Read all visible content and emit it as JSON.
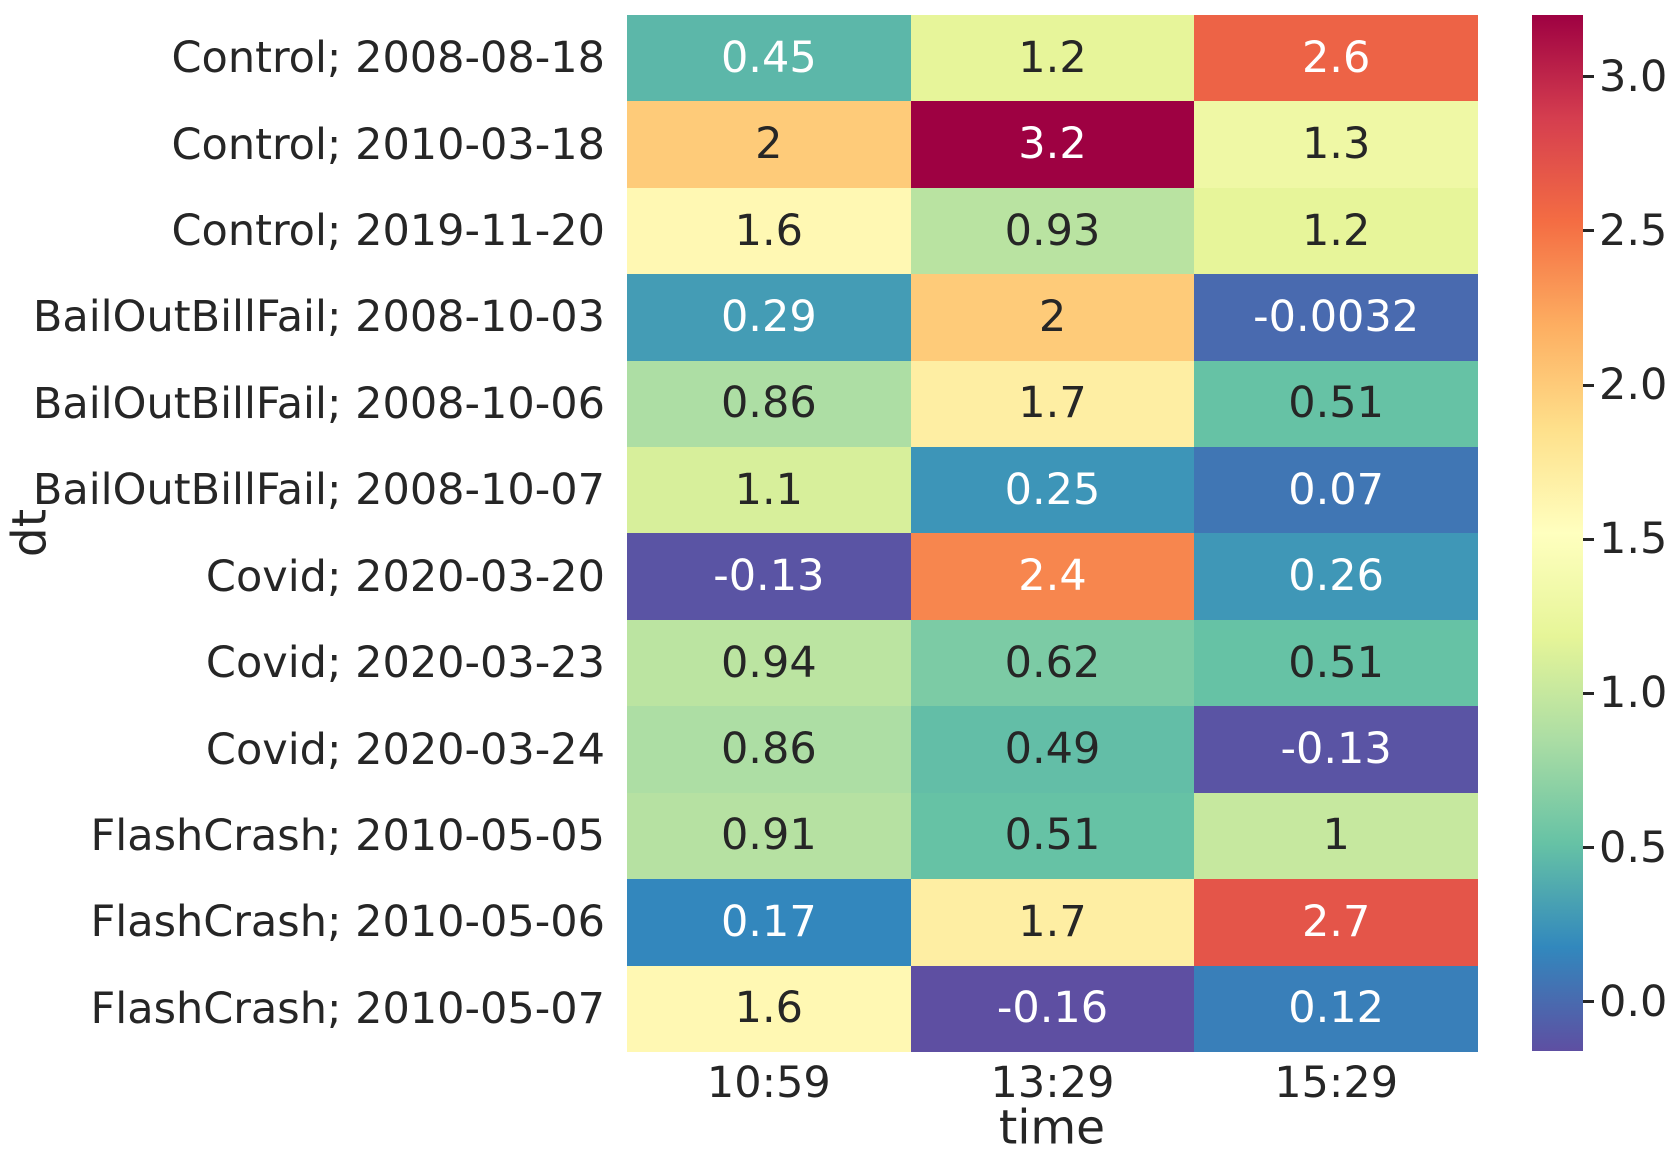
{
  "chart_data": {
    "type": "heatmap",
    "xlabel": "time",
    "ylabel": "dt",
    "columns": [
      "10:59",
      "13:29",
      "15:29"
    ],
    "rows": [
      "Control; 2008-08-18",
      "Control; 2010-03-18",
      "Control; 2019-11-20",
      "BailOutBillFail; 2008-10-03",
      "BailOutBillFail; 2008-10-06",
      "BailOutBillFail; 2008-10-07",
      "Covid; 2020-03-20",
      "Covid; 2020-03-23",
      "Covid; 2020-03-24",
      "FlashCrash; 2010-05-05",
      "FlashCrash; 2010-05-06",
      "FlashCrash; 2010-05-07"
    ],
    "values": [
      [
        0.45,
        1.2,
        2.6
      ],
      [
        2,
        3.2,
        1.3
      ],
      [
        1.6,
        0.93,
        1.2
      ],
      [
        0.29,
        2,
        -0.0032
      ],
      [
        0.86,
        1.7,
        0.51
      ],
      [
        1.1,
        0.25,
        0.07
      ],
      [
        -0.13,
        2.4,
        0.26
      ],
      [
        0.94,
        0.62,
        0.51
      ],
      [
        0.86,
        0.49,
        -0.13
      ],
      [
        0.91,
        0.51,
        1
      ],
      [
        0.17,
        1.7,
        2.7
      ],
      [
        1.6,
        -0.16,
        0.12
      ]
    ],
    "annotations": [
      [
        "0.45",
        "1.2",
        "2.6"
      ],
      [
        "2",
        "3.2",
        "1.3"
      ],
      [
        "1.6",
        "0.93",
        "1.2"
      ],
      [
        "0.29",
        "2",
        "-0.0032"
      ],
      [
        "0.86",
        "1.7",
        "0.51"
      ],
      [
        "1.1",
        "0.25",
        "0.07"
      ],
      [
        "-0.13",
        "2.4",
        "0.26"
      ],
      [
        "0.94",
        "0.62",
        "0.51"
      ],
      [
        "0.86",
        "0.49",
        "-0.13"
      ],
      [
        "0.91",
        "0.51",
        "1"
      ],
      [
        "0.17",
        "1.7",
        "2.7"
      ],
      [
        "1.6",
        "-0.16",
        "0.12"
      ]
    ],
    "vmin": -0.16,
    "vmax": 3.2,
    "colormap": "Spectral_r",
    "colormap_colors": [
      "#9e0142",
      "#d53e4f",
      "#f46d43",
      "#fdae61",
      "#fee08b",
      "#ffffbf",
      "#e6f598",
      "#abdda4",
      "#66c2a5",
      "#3288bd",
      "#5e4fa2"
    ],
    "annotation_text_dark": "#262626",
    "annotation_text_light": "#ffffff",
    "colorbar_ticks": [
      "3.0",
      "2.5",
      "2.0",
      "1.5",
      "1.0",
      "0.5",
      "0.0"
    ],
    "colorbar_tick_values": [
      3.0,
      2.5,
      2.0,
      1.5,
      1.0,
      0.5,
      0.0
    ],
    "legend_position": "right-colorbar",
    "grid": false
  }
}
